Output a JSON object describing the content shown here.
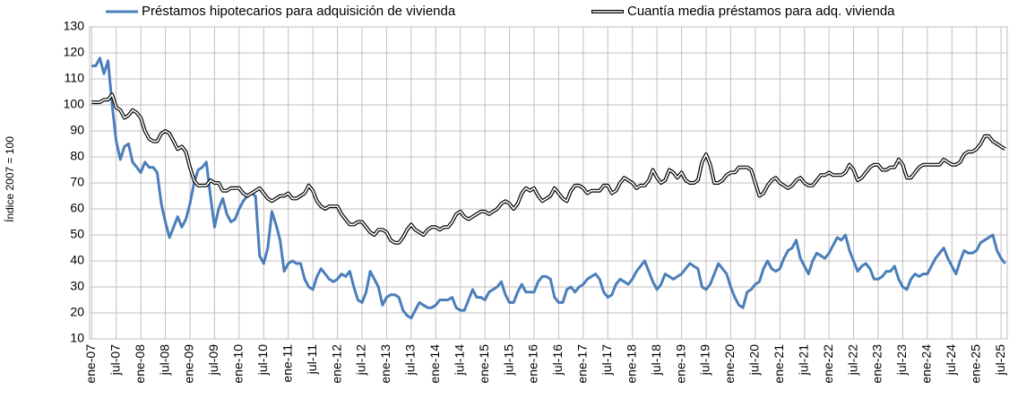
{
  "chart_data": {
    "type": "line",
    "y_label": "Índice 2007 = 100",
    "ylim": [
      10,
      130
    ],
    "yticks": [
      10,
      20,
      30,
      40,
      50,
      60,
      70,
      80,
      90,
      100,
      110,
      120,
      130
    ],
    "grid": true,
    "legend": "top",
    "categories": [
      "ene-07",
      null,
      null,
      null,
      null,
      null,
      "jul-07",
      null,
      null,
      null,
      null,
      null,
      "ene-08",
      null,
      null,
      null,
      null,
      null,
      "jul-08",
      null,
      null,
      null,
      null,
      null,
      "ene-09",
      null,
      null,
      null,
      null,
      null,
      "jul-09",
      null,
      null,
      null,
      null,
      null,
      "ene-10",
      null,
      null,
      null,
      null,
      null,
      "jul-10",
      null,
      null,
      null,
      null,
      null,
      "ene-11",
      null,
      null,
      null,
      null,
      null,
      "jul-11",
      null,
      null,
      null,
      null,
      null,
      "ene-12",
      null,
      null,
      null,
      null,
      null,
      "jul-12",
      null,
      null,
      null,
      null,
      null,
      "ene-13",
      null,
      null,
      null,
      null,
      null,
      "jul-13",
      null,
      null,
      null,
      null,
      null,
      "ene-14",
      null,
      null,
      null,
      null,
      null,
      "jul-14",
      null,
      null,
      null,
      null,
      null,
      "ene-15",
      null,
      null,
      null,
      null,
      null,
      "jul-15",
      null,
      null,
      null,
      null,
      null,
      "ene-16",
      null,
      null,
      null,
      null,
      null,
      "jul-16",
      null,
      null,
      null,
      null,
      null,
      "ene-17",
      null,
      null,
      null,
      null,
      null,
      "jul-17",
      null,
      null,
      null,
      null,
      null,
      "ene-18",
      null,
      null,
      null,
      null,
      null,
      "jul-18",
      null,
      null,
      null,
      null,
      null,
      "ene-19",
      null,
      null,
      null,
      null,
      null,
      "jul-19",
      null,
      null,
      null,
      null,
      null,
      "ene-20",
      null,
      null,
      null,
      null,
      null,
      "jul-20",
      null,
      null,
      null,
      null,
      null,
      "ene-21",
      null,
      null,
      null,
      null,
      null,
      "jul-21",
      null,
      null,
      null,
      null,
      null,
      "ene-22",
      null,
      null,
      null,
      null,
      null,
      "jul-22",
      null,
      null,
      null,
      null,
      null,
      "ene-23",
      null,
      null,
      null,
      null,
      null,
      "jul-23",
      null,
      null,
      null,
      null,
      null,
      "ene-24",
      null,
      null,
      null,
      null,
      null,
      "jul-24",
      null,
      null,
      null,
      null,
      null,
      "ene-25",
      null,
      null,
      null,
      null,
      null,
      "jul-25",
      null
    ],
    "series": [
      {
        "name": "Préstamos hipotecarios para adquisición de vivienda",
        "color": "#4a7ebb",
        "values": [
          115,
          115,
          118,
          112,
          117,
          100,
          86,
          79,
          84,
          85,
          78,
          76,
          74,
          78,
          76,
          76,
          74,
          62,
          55,
          49,
          53,
          57,
          53,
          56,
          62,
          70,
          75,
          76,
          78,
          65,
          53,
          60,
          64,
          58,
          55,
          56,
          60,
          63,
          65,
          66,
          65,
          42,
          39,
          45,
          59,
          54,
          48,
          36,
          39,
          40,
          39,
          39,
          33,
          30,
          29,
          34,
          37,
          35,
          33,
          32,
          33,
          35,
          34,
          36,
          30,
          25,
          24,
          28,
          36,
          33,
          30,
          23,
          26,
          27,
          27,
          26,
          21,
          19,
          18,
          21,
          24,
          23,
          22,
          22,
          23,
          25,
          25,
          25,
          26,
          22,
          21,
          21,
          25,
          29,
          26,
          26,
          25,
          28,
          29,
          30,
          32,
          27,
          24,
          24,
          28,
          31,
          28,
          28,
          28,
          32,
          34,
          34,
          33,
          26,
          24,
          24,
          29,
          30,
          28,
          30,
          31,
          33,
          34,
          35,
          33,
          28,
          26,
          27,
          31,
          33,
          32,
          31,
          33,
          36,
          38,
          40,
          36,
          32,
          29,
          31,
          35,
          34,
          33,
          34,
          35,
          37,
          39,
          38,
          37,
          30,
          29,
          31,
          35,
          39,
          37,
          35,
          30,
          26,
          23,
          22,
          28,
          29,
          31,
          32,
          37,
          40,
          37,
          36,
          37,
          41,
          44,
          45,
          48,
          41,
          38,
          35,
          40,
          43,
          42,
          41,
          43,
          46,
          49,
          48,
          50,
          44,
          40,
          36,
          38,
          39,
          37,
          33,
          33,
          34,
          36,
          36,
          38,
          33,
          30,
          29,
          33,
          35,
          34,
          35,
          35,
          38,
          41,
          43,
          45,
          41,
          38,
          35,
          40,
          44,
          43,
          43,
          44,
          47,
          48,
          49,
          50,
          44,
          41,
          39
        ]
      },
      {
        "name": "Cuantía media préstamos para adq. vivienda",
        "color": "#000000",
        "values": [
          101,
          101,
          101,
          102,
          102,
          104,
          99,
          98,
          95,
          96,
          98,
          97,
          95,
          90,
          87,
          86,
          86,
          89,
          90,
          89,
          86,
          83,
          84,
          82,
          76,
          71,
          69,
          69,
          69,
          71,
          70,
          70,
          67,
          67,
          68,
          68,
          68,
          66,
          65,
          66,
          67,
          68,
          66,
          64,
          63,
          64,
          65,
          65,
          66,
          64,
          64,
          65,
          66,
          69,
          67,
          63,
          61,
          60,
          61,
          61,
          61,
          58,
          56,
          54,
          54,
          55,
          55,
          53,
          51,
          50,
          52,
          52,
          51,
          48,
          47,
          47,
          49,
          52,
          54,
          52,
          51,
          50,
          52,
          53,
          53,
          52,
          53,
          53,
          55,
          58,
          59,
          57,
          56,
          57,
          58,
          59,
          59,
          58,
          59,
          60,
          62,
          63,
          62,
          60,
          62,
          66,
          68,
          67,
          68,
          65,
          63,
          64,
          65,
          68,
          66,
          64,
          63,
          67,
          69,
          69,
          68,
          66,
          67,
          67,
          67,
          69,
          69,
          66,
          67,
          70,
          72,
          71,
          70,
          68,
          69,
          69,
          71,
          75,
          72,
          70,
          71,
          75,
          74,
          72,
          74,
          71,
          70,
          70,
          71,
          78,
          81,
          77,
          70,
          70,
          71,
          73,
          74,
          74,
          76,
          76,
          76,
          75,
          70,
          65,
          66,
          69,
          71,
          72,
          70,
          69,
          68,
          69,
          71,
          72,
          70,
          69,
          69,
          71,
          73,
          73,
          74,
          73,
          73,
          73,
          74,
          77,
          75,
          71,
          72,
          74,
          76,
          77,
          77,
          75,
          75,
          76,
          76,
          79,
          77,
          72,
          72,
          74,
          76,
          77,
          77,
          77,
          77,
          77,
          79,
          78,
          77,
          77,
          78,
          81,
          82,
          82,
          83,
          85,
          88,
          88,
          86,
          85,
          84,
          83
        ]
      }
    ]
  }
}
